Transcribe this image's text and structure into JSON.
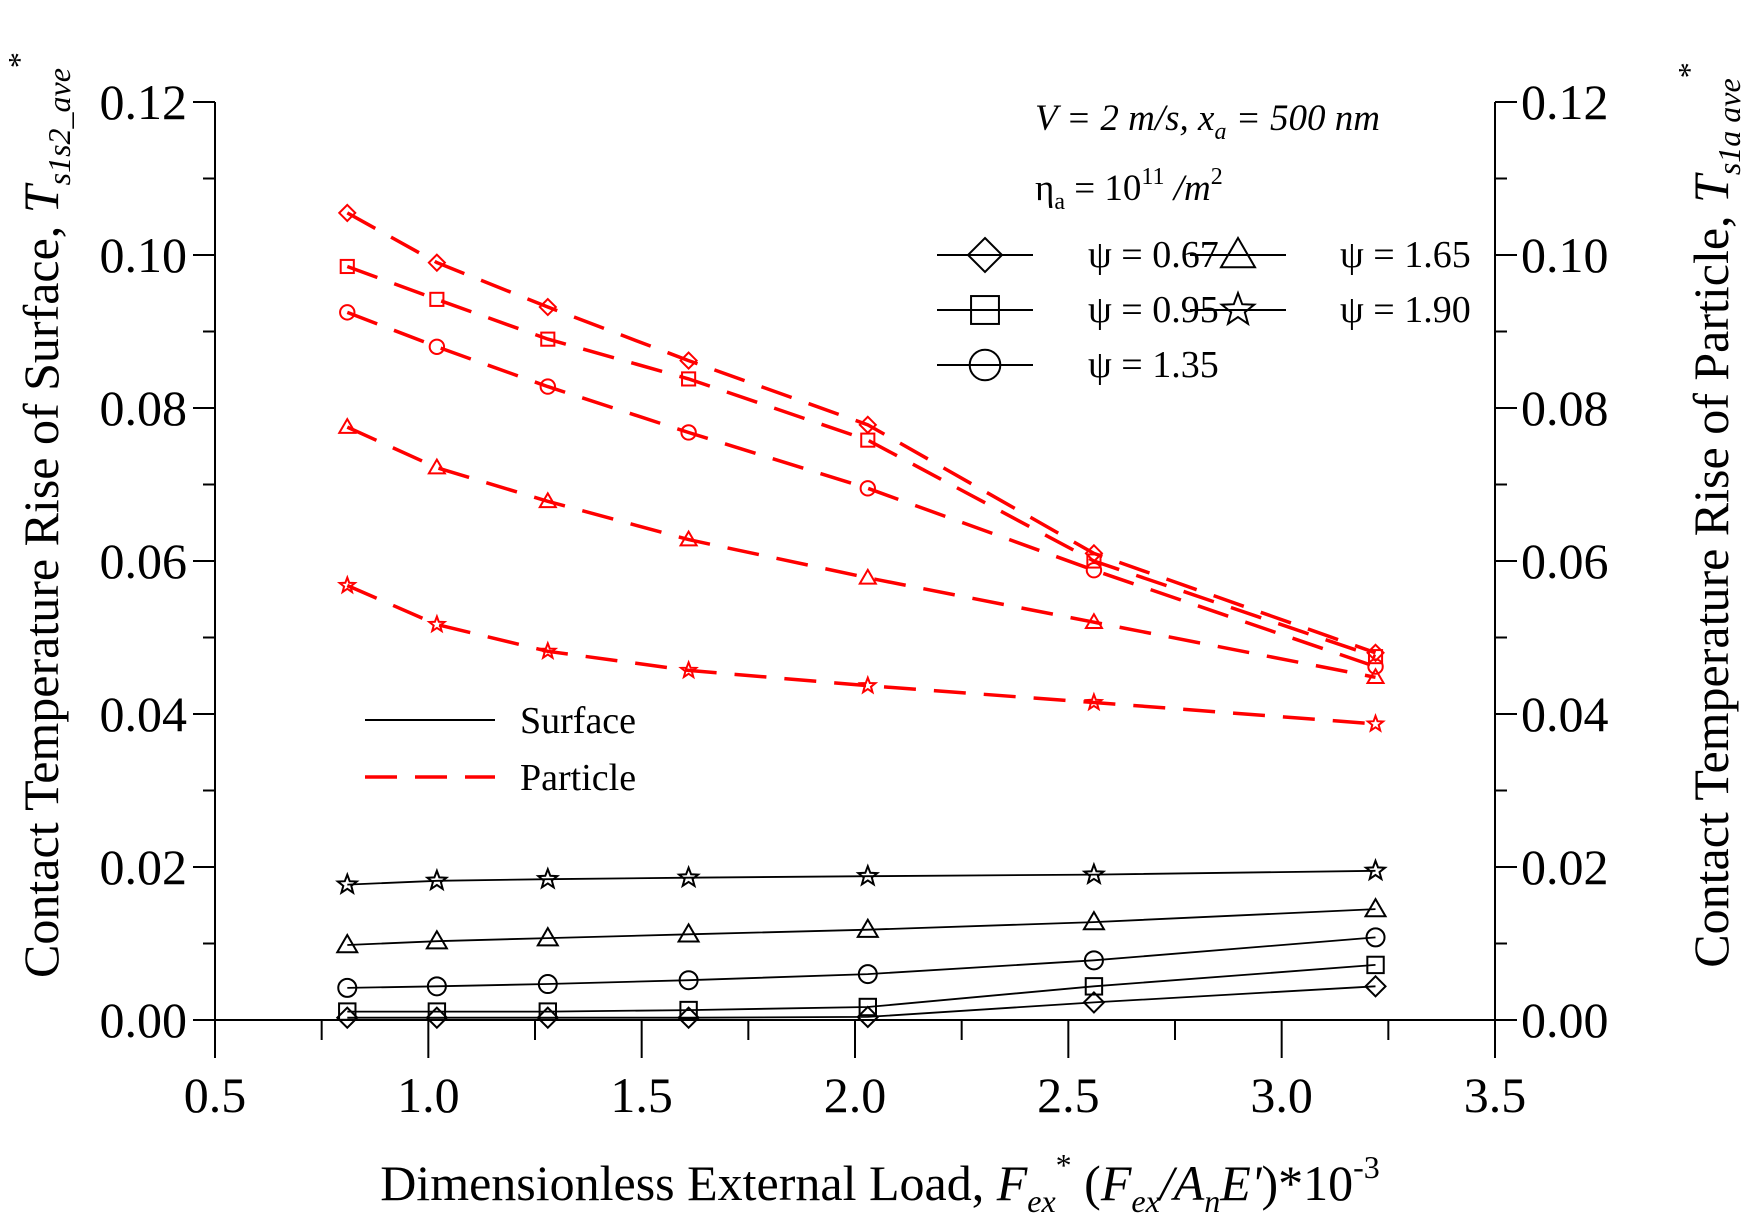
{
  "chart_data": {
    "type": "line",
    "title": "",
    "xlabel": {
      "main": "Dimensionless External Load, ",
      "var": "F",
      "var_sub": "ex",
      "var_sup": "*",
      "paren_open": " (",
      "ratio_num": "F",
      "ratio_num_sub": "ex",
      "ratio_slash": "/",
      "ratio_den": "A",
      "ratio_den_sub": "n",
      "ratio_den_mod": "E'",
      "paren_close": ")*10",
      "exp": "-3"
    },
    "ylabel_left": {
      "main": "Contact Temperature Rise of Surface, ",
      "var": "T",
      "sub": "s1s2_ave",
      "sup": "*"
    },
    "ylabel_right": {
      "main": "Contact Temperature Rise of Particle, ",
      "var": "T",
      "sub": "s1a ave",
      "sup": "*"
    },
    "xlim": [
      0.5,
      3.5
    ],
    "ylim": [
      0.0,
      0.12
    ],
    "x_ticks": [
      "0.5",
      "1.0",
      "1.5",
      "2.0",
      "2.5",
      "3.0",
      "3.5"
    ],
    "y_ticks": [
      "0.00",
      "0.02",
      "0.04",
      "0.06",
      "0.08",
      "0.10",
      "0.12"
    ],
    "conditions": {
      "line1": "V = 2 m/s, x",
      "line1_sub": "a",
      "line1_tail": " = 500 nm",
      "line2": "η",
      "line2_sub": "a",
      "line2_mid": " = 10",
      "line2_sup": "11",
      "line2_tail": " /m",
      "line2_sup2": "2"
    },
    "legend_markers": [
      {
        "marker": "diamond",
        "label": "ψ = 0.67"
      },
      {
        "marker": "square",
        "label": "ψ = 0.95"
      },
      {
        "marker": "circle",
        "label": "ψ = 1.35"
      },
      {
        "marker": "triangle",
        "label": "ψ = 1.65"
      },
      {
        "marker": "star",
        "label": "ψ = 1.90"
      }
    ],
    "legend_lines": [
      {
        "style": "solid",
        "label": "Surface",
        "color": "#000000"
      },
      {
        "style": "dashed",
        "label": "Particle",
        "color": "#ff0000"
      }
    ],
    "x": [
      0.81,
      1.02,
      1.28,
      1.61,
      2.03,
      2.56,
      3.22
    ],
    "series": [
      {
        "name": "Surface ψ = 0.67",
        "group": "surface",
        "marker": "diamond",
        "values": [
          0.0003,
          0.0003,
          0.0003,
          0.0003,
          0.0004,
          0.0023,
          0.0044
        ]
      },
      {
        "name": "Surface ψ = 0.95",
        "group": "surface",
        "marker": "square",
        "values": [
          0.0011,
          0.0011,
          0.0011,
          0.0013,
          0.0017,
          0.0044,
          0.0072
        ]
      },
      {
        "name": "Surface ψ = 1.35",
        "group": "surface",
        "marker": "circle",
        "values": [
          0.0042,
          0.0044,
          0.0047,
          0.0052,
          0.006,
          0.0078,
          0.0108
        ]
      },
      {
        "name": "Surface ψ = 1.65",
        "group": "surface",
        "marker": "triangle",
        "values": [
          0.0098,
          0.0103,
          0.0107,
          0.0112,
          0.0118,
          0.0128,
          0.0145
        ]
      },
      {
        "name": "Surface ψ = 1.90",
        "group": "surface",
        "marker": "star",
        "values": [
          0.0177,
          0.0182,
          0.0184,
          0.0186,
          0.0188,
          0.019,
          0.0195
        ]
      },
      {
        "name": "Particle ψ = 0.67",
        "group": "particle",
        "marker": "diamond",
        "values": [
          0.1055,
          0.099,
          0.0932,
          0.0862,
          0.0778,
          0.061,
          0.048
        ]
      },
      {
        "name": "Particle ψ = 0.95",
        "group": "particle",
        "marker": "square",
        "values": [
          0.0985,
          0.0942,
          0.089,
          0.0838,
          0.0758,
          0.06,
          0.0475
        ]
      },
      {
        "name": "Particle ψ = 1.35",
        "group": "particle",
        "marker": "circle",
        "values": [
          0.0925,
          0.088,
          0.0828,
          0.0768,
          0.0695,
          0.0588,
          0.0462
        ]
      },
      {
        "name": "Particle ψ = 1.65",
        "group": "particle",
        "marker": "triangle",
        "values": [
          0.0775,
          0.0722,
          0.0678,
          0.0628,
          0.0578,
          0.052,
          0.0448
        ]
      },
      {
        "name": "Particle ψ = 1.90",
        "group": "particle",
        "marker": "star",
        "values": [
          0.0568,
          0.0517,
          0.0482,
          0.0457,
          0.0437,
          0.0415,
          0.0387
        ]
      }
    ],
    "colors": {
      "surface": "#000000",
      "particle": "#ff0000",
      "axis": "#000000"
    }
  }
}
